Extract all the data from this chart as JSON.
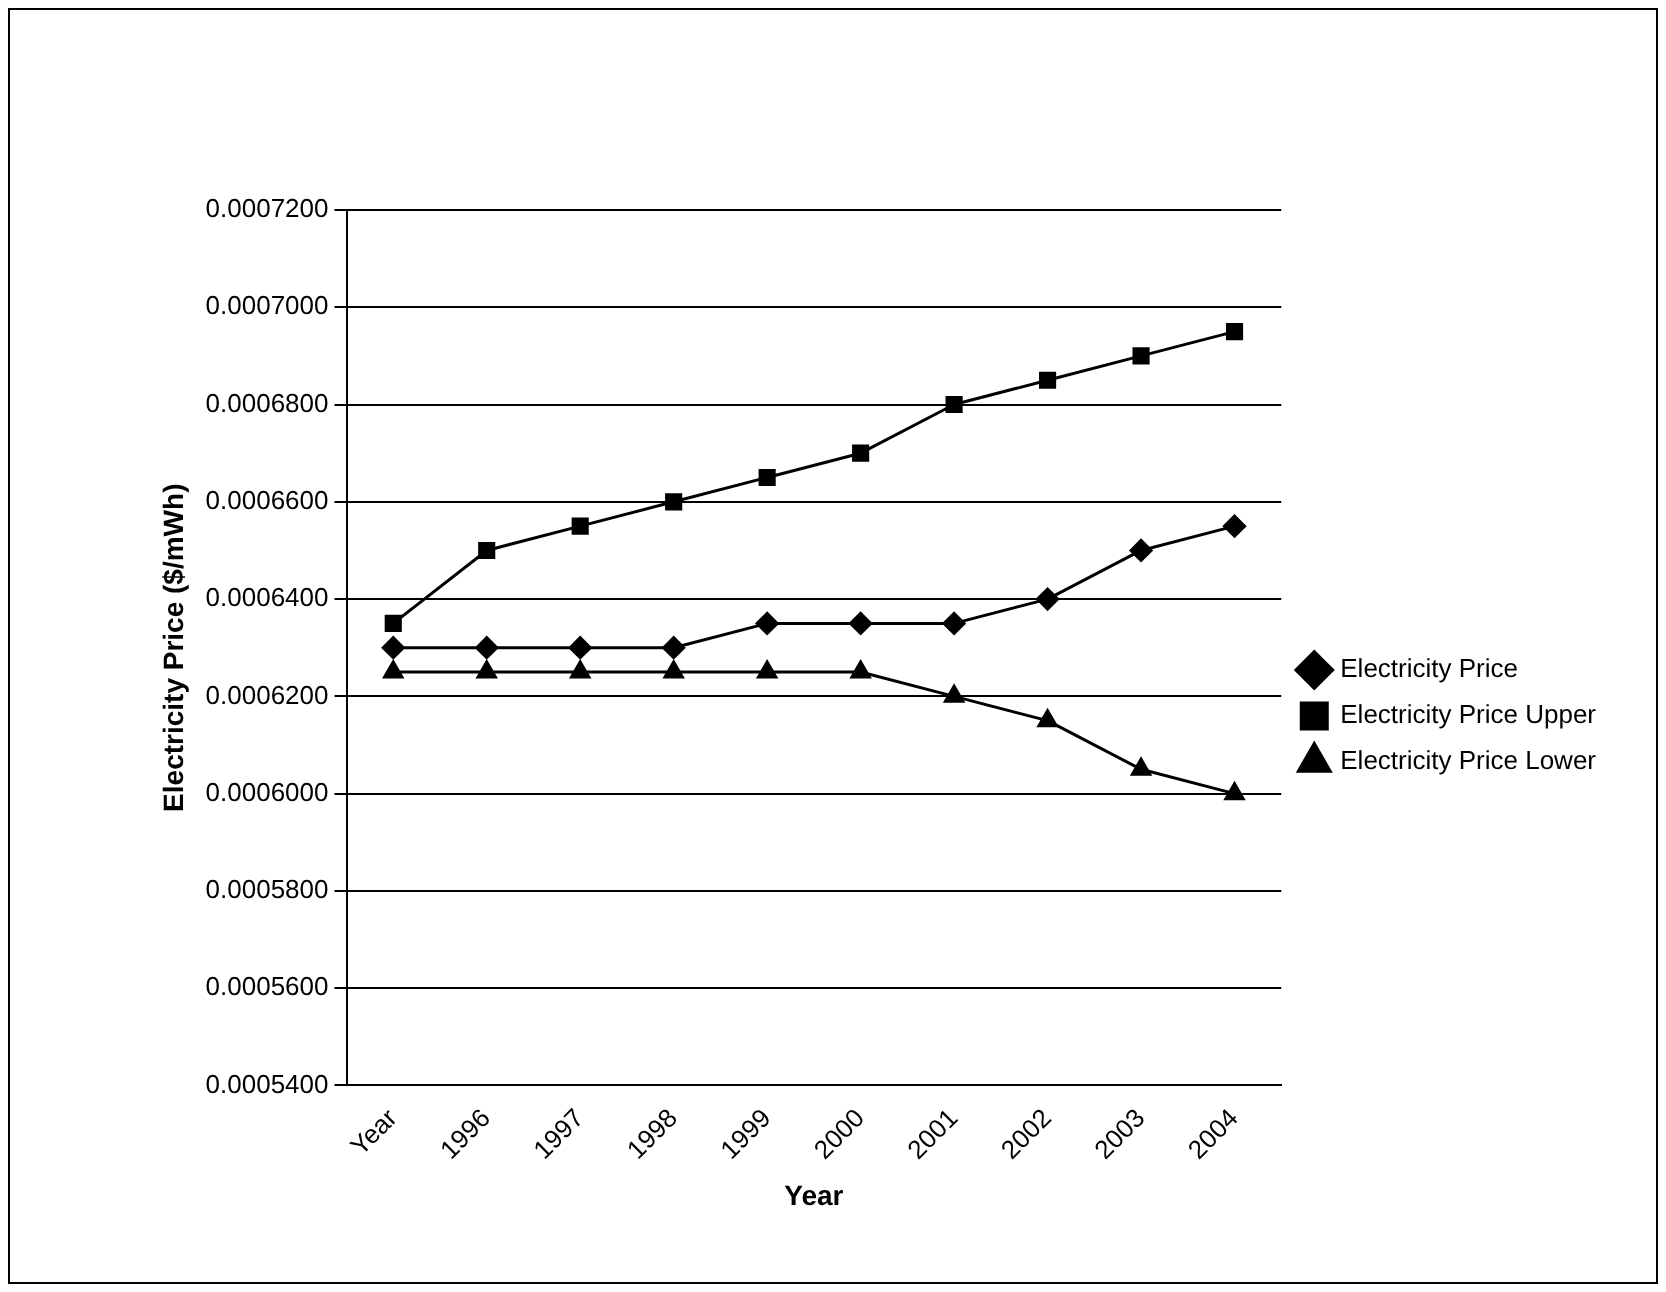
{
  "chart_data": {
    "type": "line",
    "xlabel": "Year",
    "ylabel": "Electricity Price ($/mWh)",
    "categories": [
      "Year",
      "1996",
      "1997",
      "1998",
      "1999",
      "2000",
      "2001",
      "2002",
      "2003",
      "2004"
    ],
    "series": [
      {
        "name": "Electricity Price",
        "color": "#000000",
        "marker": "diamond",
        "values": [
          0.00063,
          0.00063,
          0.00063,
          0.00063,
          0.000635,
          0.000635,
          0.000635,
          0.00064,
          0.00065,
          0.000655
        ]
      },
      {
        "name": "Electricity Price Upper",
        "color": "#000000",
        "marker": "square",
        "values": [
          0.000635,
          0.00065,
          0.000655,
          0.00066,
          0.000665,
          0.00067,
          0.00068,
          0.000685,
          0.00069,
          0.000695
        ]
      },
      {
        "name": "Electricity Price Lower",
        "color": "#000000",
        "marker": "triangle",
        "values": [
          0.000625,
          0.000625,
          0.000625,
          0.000625,
          0.000625,
          0.000625,
          0.00062,
          0.000615,
          0.000605,
          0.0006
        ]
      }
    ],
    "ylim": [
      0.00054,
      0.00072
    ],
    "yticks": [
      {
        "value": 0.00054,
        "label": "0.0005400"
      },
      {
        "value": 0.00056,
        "label": "0.0005600"
      },
      {
        "value": 0.00058,
        "label": "0.0005800"
      },
      {
        "value": 0.0006,
        "label": "0.0006000"
      },
      {
        "value": 0.00062,
        "label": "0.0006200"
      },
      {
        "value": 0.00064,
        "label": "0.0006400"
      },
      {
        "value": 0.00066,
        "label": "0.0006600"
      },
      {
        "value": 0.00068,
        "label": "0.0006800"
      },
      {
        "value": 0.0007,
        "label": "0.0007000"
      },
      {
        "value": 0.00072,
        "label": "0.0007200"
      }
    ],
    "grid": "y",
    "legend": "right",
    "line_style": "solid"
  }
}
